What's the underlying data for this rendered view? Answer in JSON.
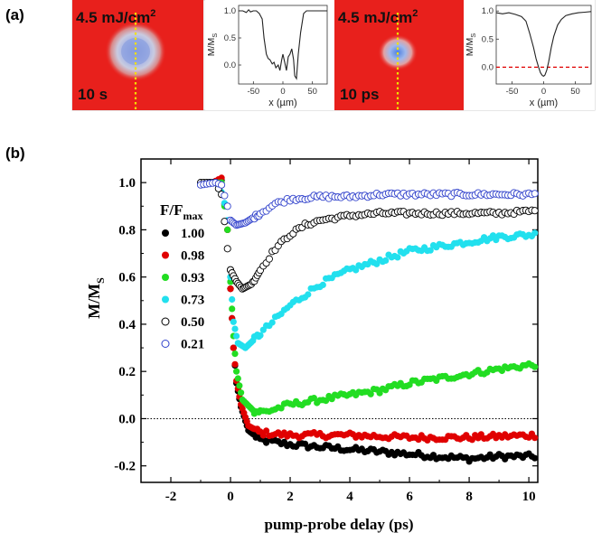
{
  "panel_labels": {
    "a": "(a)",
    "b": "(b)"
  },
  "panel_a": {
    "images": [
      {
        "fluence": "4.5 mJ/cm",
        "fluence_sup": "2",
        "time": "10 s",
        "background": "#e8201c"
      },
      {
        "fluence": "4.5 mJ/cm",
        "fluence_sup": "2",
        "time": "10 ps",
        "background": "#e8201c"
      }
    ],
    "insets": [
      {
        "ylabel": "M/M",
        "ylabel_sub": "S",
        "xlabel": "x (µm)",
        "xticks": [
          "-50",
          "0",
          "50"
        ],
        "yticks": [
          "1.0",
          "0.5",
          "0.0"
        ],
        "xlim": [
          -75,
          75
        ],
        "ylim": [
          -0.35,
          1.1
        ],
        "x": [
          -75,
          -68,
          -62,
          -58,
          -55,
          -50,
          -45,
          -40,
          -35,
          -32,
          -28,
          -25,
          -22,
          -18,
          -15,
          -12,
          -8,
          -5,
          -2,
          0,
          3,
          6,
          9,
          12,
          15,
          18,
          20,
          23,
          26,
          30,
          35,
          40,
          50,
          60,
          75
        ],
        "y": [
          1.0,
          1.0,
          0.97,
          1.02,
          0.98,
          1.0,
          1.0,
          0.95,
          0.85,
          0.5,
          0.2,
          0.12,
          0.1,
          0.02,
          0.05,
          -0.05,
          0.0,
          -0.1,
          0.1,
          0.2,
          0.05,
          -0.1,
          0.15,
          0.2,
          0.3,
          0.1,
          -0.2,
          -0.25,
          0.2,
          0.6,
          0.95,
          1.0,
          1.0,
          1.0,
          1.0
        ],
        "dashed_zero": false
      },
      {
        "ylabel": "M/M",
        "ylabel_sub": "S",
        "xlabel": "x (µm)",
        "xticks": [
          "-50",
          "0",
          "50"
        ],
        "yticks": [
          "1.0",
          "0.5",
          "0.0"
        ],
        "xlim": [
          -75,
          75
        ],
        "ylim": [
          -0.3,
          1.1
        ],
        "x": [
          -75,
          -65,
          -55,
          -45,
          -35,
          -28,
          -22,
          -16,
          -12,
          -8,
          -5,
          -2,
          0,
          2,
          5,
          8,
          12,
          16,
          22,
          28,
          35,
          45,
          55,
          65,
          75
        ],
        "y": [
          0.97,
          0.95,
          0.97,
          0.94,
          0.9,
          0.82,
          0.6,
          0.35,
          0.15,
          0.0,
          -0.1,
          -0.15,
          -0.16,
          -0.14,
          -0.05,
          0.1,
          0.35,
          0.55,
          0.75,
          0.85,
          0.92,
          0.95,
          0.97,
          0.98,
          0.99
        ],
        "dashed_zero": true
      }
    ]
  },
  "chart_data": {
    "type": "scatter",
    "xlabel": "pump-probe delay (ps)",
    "ylabel": "M/M",
    "ylabel_sub": "S",
    "xlim": [
      -3,
      10.3
    ],
    "ylim": [
      -0.27,
      1.1
    ],
    "xticks": [
      -2,
      0,
      2,
      4,
      6,
      8,
      10
    ],
    "yticks": [
      -0.2,
      0.0,
      0.2,
      0.4,
      0.6,
      0.8,
      1.0
    ],
    "zero_line": true,
    "legend": {
      "title": "F/F",
      "title_sub": "max",
      "placement": "left"
    },
    "series": [
      {
        "name": "1.00",
        "color": "#000000",
        "filled": true,
        "keypoints": [
          [
            -1.0,
            1.0
          ],
          [
            -0.6,
            1.0
          ],
          [
            -0.3,
            1.01
          ],
          [
            -0.1,
            0.8
          ],
          [
            0.0,
            0.55
          ],
          [
            0.1,
            0.3
          ],
          [
            0.2,
            0.15
          ],
          [
            0.35,
            0.05
          ],
          [
            0.6,
            -0.05
          ],
          [
            1.0,
            -0.09
          ],
          [
            2.0,
            -0.11
          ],
          [
            3.0,
            -0.12
          ],
          [
            4.0,
            -0.13
          ],
          [
            5.0,
            -0.14
          ],
          [
            6.0,
            -0.15
          ],
          [
            7.0,
            -0.16
          ],
          [
            8.0,
            -0.17
          ],
          [
            9.0,
            -0.16
          ],
          [
            10.2,
            -0.16
          ]
        ]
      },
      {
        "name": "0.98",
        "color": "#e00000",
        "filled": true,
        "keypoints": [
          [
            -1.0,
            1.0
          ],
          [
            -0.6,
            1.0
          ],
          [
            -0.3,
            1.02
          ],
          [
            -0.1,
            0.8
          ],
          [
            0.0,
            0.55
          ],
          [
            0.1,
            0.3
          ],
          [
            0.2,
            0.16
          ],
          [
            0.35,
            0.06
          ],
          [
            0.6,
            -0.03
          ],
          [
            1.0,
            -0.06
          ],
          [
            2.0,
            -0.07
          ],
          [
            4.0,
            -0.07
          ],
          [
            6.0,
            -0.08
          ],
          [
            8.0,
            -0.08
          ],
          [
            10.2,
            -0.07
          ]
        ]
      },
      {
        "name": "0.93",
        "color": "#22dd22",
        "filled": true,
        "keypoints": [
          [
            -1.0,
            1.0
          ],
          [
            -0.6,
            1.0
          ],
          [
            -0.3,
            1.0
          ],
          [
            -0.1,
            0.8
          ],
          [
            0.0,
            0.58
          ],
          [
            0.1,
            0.35
          ],
          [
            0.2,
            0.2
          ],
          [
            0.4,
            0.08
          ],
          [
            0.8,
            0.03
          ],
          [
            1.2,
            0.03
          ],
          [
            2.0,
            0.06
          ],
          [
            3.0,
            0.08
          ],
          [
            4.0,
            0.1
          ],
          [
            5.0,
            0.12
          ],
          [
            6.0,
            0.15
          ],
          [
            7.0,
            0.17
          ],
          [
            8.0,
            0.19
          ],
          [
            9.0,
            0.21
          ],
          [
            10.2,
            0.23
          ]
        ]
      },
      {
        "name": "0.73",
        "color": "#22e0ee",
        "filled": true,
        "keypoints": [
          [
            -1.0,
            1.0
          ],
          [
            -0.5,
            1.0
          ],
          [
            -0.25,
            0.95
          ],
          [
            -0.1,
            0.84
          ],
          [
            0.0,
            0.6
          ],
          [
            0.1,
            0.41
          ],
          [
            0.25,
            0.32
          ],
          [
            0.5,
            0.3
          ],
          [
            1.0,
            0.36
          ],
          [
            1.5,
            0.42
          ],
          [
            2.0,
            0.48
          ],
          [
            3.0,
            0.57
          ],
          [
            4.0,
            0.63
          ],
          [
            5.0,
            0.67
          ],
          [
            6.0,
            0.71
          ],
          [
            7.0,
            0.73
          ],
          [
            8.0,
            0.75
          ],
          [
            9.0,
            0.77
          ],
          [
            10.2,
            0.78
          ]
        ]
      },
      {
        "name": "0.50",
        "color": "#000000",
        "filled": false,
        "keypoints": [
          [
            -1.0,
            1.0
          ],
          [
            -0.5,
            1.0
          ],
          [
            -0.3,
            0.95
          ],
          [
            -0.1,
            0.72
          ],
          [
            0.0,
            0.63
          ],
          [
            0.2,
            0.58
          ],
          [
            0.4,
            0.55
          ],
          [
            0.7,
            0.57
          ],
          [
            1.0,
            0.63
          ],
          [
            1.5,
            0.72
          ],
          [
            2.0,
            0.78
          ],
          [
            2.5,
            0.82
          ],
          [
            3.0,
            0.84
          ],
          [
            4.0,
            0.86
          ],
          [
            5.0,
            0.87
          ],
          [
            6.0,
            0.87
          ],
          [
            7.0,
            0.87
          ],
          [
            8.0,
            0.87
          ],
          [
            9.0,
            0.87
          ],
          [
            10.2,
            0.88
          ]
        ]
      },
      {
        "name": "0.21",
        "color": "#3344cc",
        "filled": false,
        "keypoints": [
          [
            -1.0,
            0.99
          ],
          [
            -0.5,
            1.0
          ],
          [
            -0.3,
            0.99
          ],
          [
            -0.1,
            0.9
          ],
          [
            0.0,
            0.84
          ],
          [
            0.2,
            0.82
          ],
          [
            0.5,
            0.83
          ],
          [
            1.0,
            0.87
          ],
          [
            1.5,
            0.91
          ],
          [
            2.0,
            0.93
          ],
          [
            3.0,
            0.94
          ],
          [
            4.0,
            0.94
          ],
          [
            5.0,
            0.95
          ],
          [
            6.0,
            0.95
          ],
          [
            7.0,
            0.95
          ],
          [
            8.0,
            0.95
          ],
          [
            9.0,
            0.95
          ],
          [
            10.2,
            0.95
          ]
        ]
      }
    ]
  }
}
